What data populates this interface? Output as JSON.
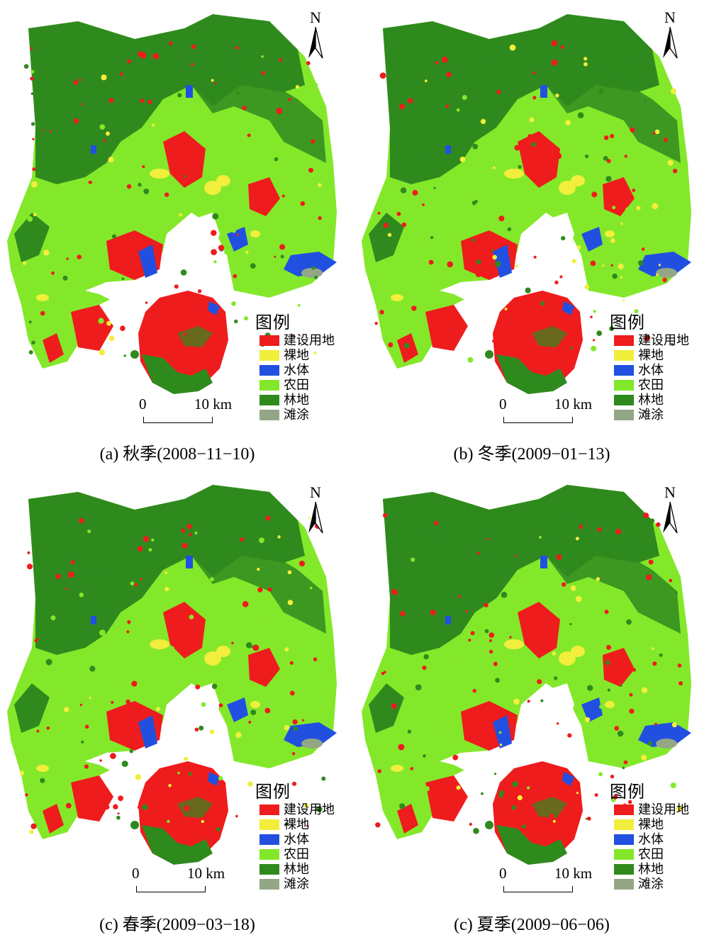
{
  "north_label": "N",
  "legend": {
    "title": "图例",
    "items": [
      {
        "label": "建设用地",
        "color": "#ee1c1c"
      },
      {
        "label": "裸地",
        "color": "#f2ee3c"
      },
      {
        "label": "水体",
        "color": "#2150e0"
      },
      {
        "label": "农田",
        "color": "#84e82a"
      },
      {
        "label": "林地",
        "color": "#2f8a1e"
      },
      {
        "label": "滩涂",
        "color": "#93a787"
      }
    ]
  },
  "scale": {
    "start": "0",
    "end": "10 km"
  },
  "panels": [
    {
      "caption": "(a) 秋季(2008−11−10)"
    },
    {
      "caption": "(b) 冬季(2009−01−13)"
    },
    {
      "caption": "(c) 春季(2009−03−18)"
    },
    {
      "caption": "(c) 夏季(2009−06−06)"
    }
  ]
}
